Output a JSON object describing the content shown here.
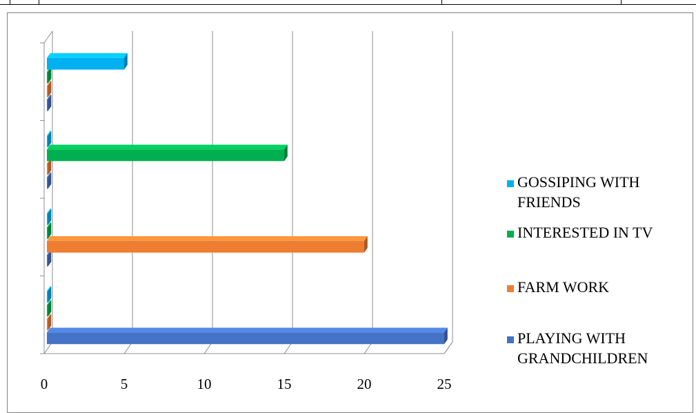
{
  "chart_data": {
    "type": "bar",
    "orientation": "horizontal",
    "style": "3d-clustered",
    "title": "",
    "xlabel": "",
    "ylabel": "",
    "xlim": [
      0,
      25
    ],
    "x_ticks": [
      0,
      5,
      10,
      15,
      20,
      25
    ],
    "grid": true,
    "legend_position": "right",
    "categories": [
      "PLAYING WITH GRANDCHILDREN",
      "FARM WORK",
      "INTERESTED IN TV",
      "GOSSIPING WITH FRIENDS"
    ],
    "series": [
      {
        "name": "PLAYING WITH GRANDCHILDREN",
        "color": "#4472C4",
        "values": [
          25,
          0,
          0,
          0
        ]
      },
      {
        "name": "FARM WORK",
        "color": "#ED7D31",
        "values": [
          0,
          20,
          0,
          0
        ]
      },
      {
        "name": "INTERESTED IN TV",
        "color": "#00B050",
        "values": [
          0,
          0,
          15,
          0
        ]
      },
      {
        "name": "GOSSIPING WITH FRIENDS",
        "color": "#00B0F0",
        "values": [
          0,
          0,
          0,
          5
        ]
      }
    ],
    "legend": [
      {
        "lines": [
          "GOSSIPING WITH",
          "FRIENDS"
        ],
        "color": "#00B0F0"
      },
      {
        "lines": [
          "INTERESTED IN TV"
        ],
        "color": "#00B050"
      },
      {
        "lines": [
          "FARM WORK"
        ],
        "color": "#ED7D31"
      },
      {
        "lines": [
          "PLAYING WITH",
          "GRANDCHILDREN"
        ],
        "color": "#4472C4"
      }
    ]
  }
}
